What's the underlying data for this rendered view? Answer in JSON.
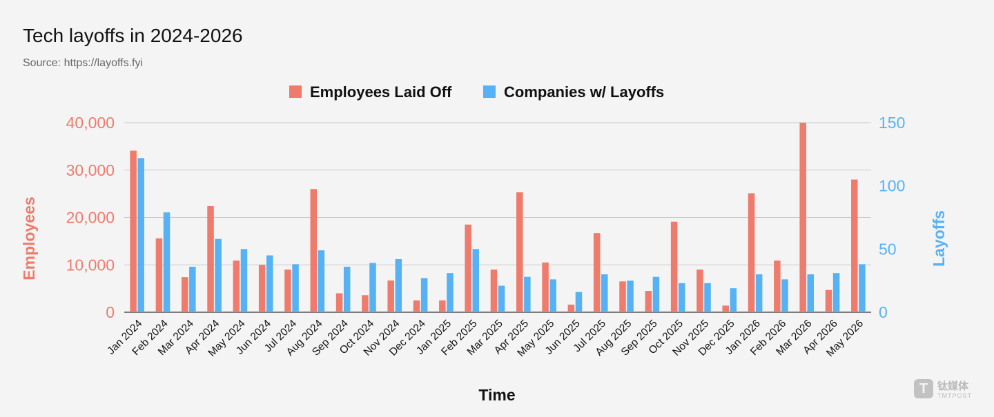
{
  "header": {
    "title": "Tech layoffs in 2024-2026",
    "subtitle": "Source: https://layoffs.fyi"
  },
  "watermark": {
    "mark": "T",
    "cn_text": "钛媒体",
    "en_text": "TMTPOST"
  },
  "colors": {
    "employees": "#ee7b6b",
    "companies": "#56b2f4",
    "grid": "#c9c9c9",
    "text": "#111111"
  },
  "chart_data": {
    "type": "bar",
    "title": "Tech layoffs in 2024-2026",
    "subtitle": "Source: https://layoffs.fyi",
    "xlabel": "Time",
    "ylabel": "Employees",
    "y2label": "Layoffs",
    "ylim": [
      0,
      40000
    ],
    "y2lim": [
      0,
      150
    ],
    "yticks": [
      0,
      10000,
      20000,
      30000,
      40000
    ],
    "ytick_labels": [
      "0",
      "10,000",
      "20,000",
      "30,000",
      "40,000"
    ],
    "y2ticks": [
      0,
      50,
      100,
      150
    ],
    "y2tick_labels": [
      "0",
      "50",
      "100",
      "150"
    ],
    "grid": true,
    "legend_position": "top-center",
    "categories": [
      "Jan 2024",
      "Feb 2024",
      "Mar 2024",
      "Apr 2024",
      "May 2024",
      "Jun 2024",
      "Jul 2024",
      "Aug 2024",
      "Sep 2024",
      "Oct 2024",
      "Nov 2024",
      "Dec 2024",
      "Jan 2025",
      "Feb 2025",
      "Mar 2025",
      "Apr 2025",
      "May 2025",
      "Jun 2025",
      "Jul 2025",
      "Aug 2025",
      "Sep 2025",
      "Oct 2025",
      "Nov 2025",
      "Dec 2025",
      "Jan 2026",
      "Feb 2026",
      "Mar 2026",
      "Apr 2026",
      "May 2026"
    ],
    "series": [
      {
        "name": "Employees Laid Off",
        "axis": "left",
        "values": [
          34100,
          15600,
          7400,
          22400,
          10900,
          10000,
          9000,
          26000,
          4000,
          3600,
          6700,
          2500,
          2500,
          18500,
          9000,
          25300,
          10500,
          1600,
          16700,
          6500,
          4500,
          19100,
          9000,
          1400,
          25100,
          10900,
          40000,
          4700,
          28000
        ]
      },
      {
        "name": "Companies w/ Layoffs",
        "axis": "right",
        "values": [
          122,
          79,
          36,
          58,
          50,
          45,
          38,
          49,
          36,
          39,
          42,
          27,
          31,
          50,
          21,
          28,
          26,
          16,
          30,
          25,
          28,
          23,
          23,
          19,
          30,
          26,
          30,
          31,
          38
        ]
      }
    ]
  }
}
